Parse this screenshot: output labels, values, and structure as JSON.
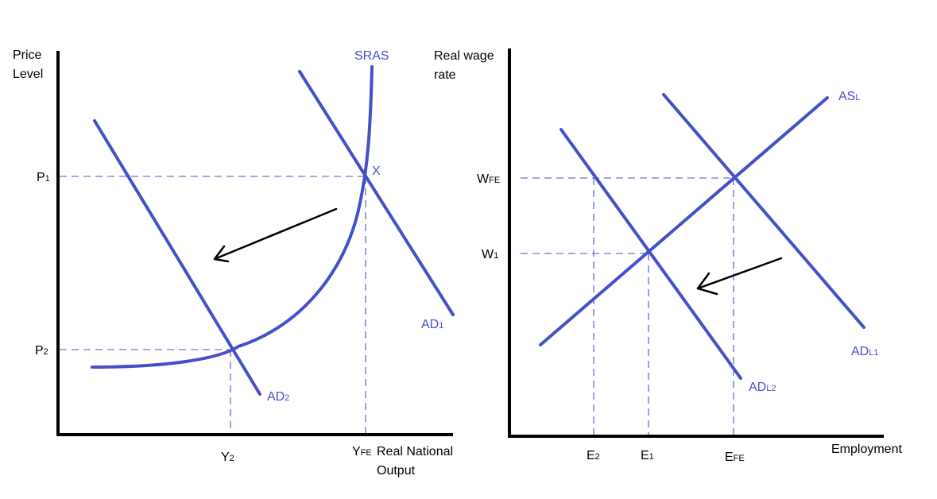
{
  "left_diagram": {
    "y_axis_label_line1": "Price",
    "y_axis_label_line2": "Level",
    "x_axis_label_line1": "Real National",
    "x_axis_label_line2": "Output",
    "curve_labels": {
      "sras": "SRAS",
      "ad1_main": "AD",
      "ad1_sub": "1",
      "ad2_main": "AD",
      "ad2_sub": "2"
    },
    "point_label": "X",
    "price_ticks": [
      {
        "main": "P",
        "sub": "1"
      },
      {
        "main": "P",
        "sub": "2"
      }
    ],
    "output_ticks": [
      {
        "main": "Y",
        "sub": "2"
      },
      {
        "main": "Y",
        "sub": "FE"
      }
    ]
  },
  "right_diagram": {
    "y_axis_label_line1": "Real wage",
    "y_axis_label_line2": "rate",
    "x_axis_label": "Employment",
    "curve_labels": {
      "asl_main": "AS",
      "asl_sub": "L",
      "adl1_main": "AD",
      "adl1_sub": "L1",
      "adl2_main": "AD",
      "adl2_sub": "L2"
    },
    "wage_ticks": [
      {
        "main": "W",
        "sub": "FE"
      },
      {
        "main": "W",
        "sub": "1"
      }
    ],
    "employment_ticks": [
      {
        "main": "E",
        "sub": "2"
      },
      {
        "main": "E",
        "sub": "1"
      },
      {
        "main": "E",
        "sub": "FE"
      }
    ]
  },
  "colors": {
    "curve": "#4450c8",
    "axis": "#000000",
    "guide": "#4a55c0"
  }
}
